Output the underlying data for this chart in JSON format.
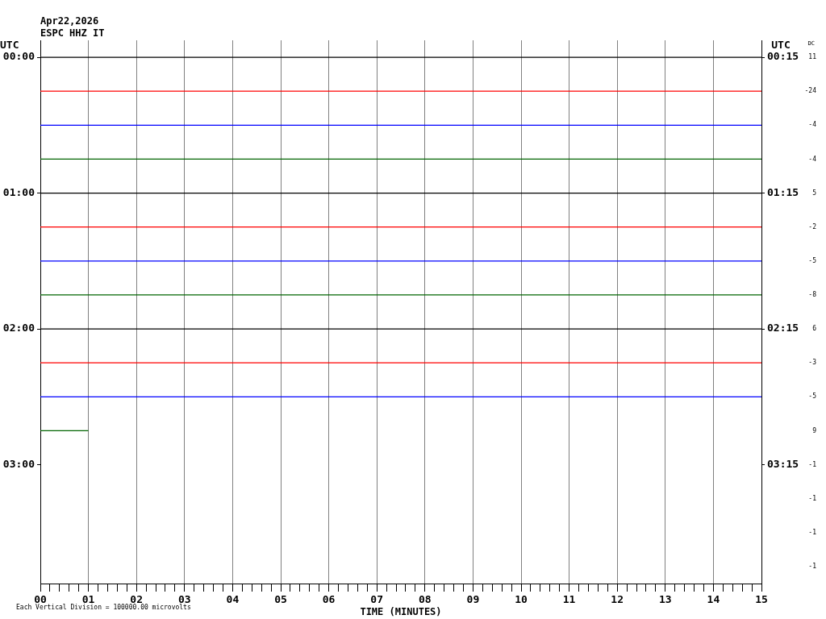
{
  "chart_data": {
    "type": "line",
    "title": "Apr22,2026",
    "subtitle": "ESPC HHZ IT",
    "xlabel": "TIME (MINUTES)",
    "ylabel": "UTC",
    "y2label": "UTC",
    "annotations": [
      "Each Vertical Division = 100000.00 microvolts",
      "DC",
      "11",
      "-24",
      "-4",
      "-4",
      "5",
      "-2",
      "-5",
      "-8",
      "6",
      "-3",
      "-5",
      "9",
      "-1",
      "-1",
      "-1",
      "-1"
    ],
    "xlim": [
      0,
      15
    ],
    "xticks": [
      {
        "value": 0,
        "label": "00"
      },
      {
        "value": 0.2,
        "label": null
      },
      {
        "value": 0.4,
        "label": null
      },
      {
        "value": 0.6,
        "label": null
      },
      {
        "value": 0.8,
        "label": null
      },
      {
        "value": 1,
        "label": "01"
      },
      {
        "value": 1.2,
        "label": null
      },
      {
        "value": 1.4,
        "label": null
      },
      {
        "value": 1.6,
        "label": null
      },
      {
        "value": 1.8,
        "label": null
      },
      {
        "value": 2,
        "label": "02"
      },
      {
        "value": 2.2,
        "label": null
      },
      {
        "value": 2.4,
        "label": null
      },
      {
        "value": 2.6,
        "label": null
      },
      {
        "value": 2.8,
        "label": null
      },
      {
        "value": 3,
        "label": "03"
      },
      {
        "value": 3.2,
        "label": null
      },
      {
        "value": 3.4,
        "label": null
      },
      {
        "value": 3.6,
        "label": null
      },
      {
        "value": 3.8,
        "label": null
      },
      {
        "value": 4,
        "label": "04"
      },
      {
        "value": 4.2,
        "label": null
      },
      {
        "value": 4.4,
        "label": null
      },
      {
        "value": 4.6,
        "label": null
      },
      {
        "value": 4.8,
        "label": null
      },
      {
        "value": 5,
        "label": "05"
      },
      {
        "value": 5.2,
        "label": null
      },
      {
        "value": 5.4,
        "label": null
      },
      {
        "value": 5.6,
        "label": null
      },
      {
        "value": 5.8,
        "label": null
      },
      {
        "value": 6,
        "label": "06"
      },
      {
        "value": 6.2,
        "label": null
      },
      {
        "value": 6.4,
        "label": null
      },
      {
        "value": 6.6,
        "label": null
      },
      {
        "value": 6.8,
        "label": null
      },
      {
        "value": 7,
        "label": "07"
      },
      {
        "value": 7.2,
        "label": null
      },
      {
        "value": 7.4,
        "label": null
      },
      {
        "value": 7.6,
        "label": null
      },
      {
        "value": 7.8,
        "label": null
      },
      {
        "value": 8,
        "label": "08"
      },
      {
        "value": 8.2,
        "label": null
      },
      {
        "value": 8.4,
        "label": null
      },
      {
        "value": 8.6,
        "label": null
      },
      {
        "value": 8.8,
        "label": null
      },
      {
        "value": 9,
        "label": "09"
      },
      {
        "value": 9.2,
        "label": null
      },
      {
        "value": 9.4,
        "label": null
      },
      {
        "value": 9.6,
        "label": null
      },
      {
        "value": 9.8,
        "label": null
      },
      {
        "value": 10,
        "label": "10"
      },
      {
        "value": 10.2,
        "label": null
      },
      {
        "value": 10.4,
        "label": null
      },
      {
        "value": 10.6,
        "label": null
      },
      {
        "value": 10.8,
        "label": null
      },
      {
        "value": 11,
        "label": "11"
      },
      {
        "value": 11.2,
        "label": null
      },
      {
        "value": 11.4,
        "label": null
      },
      {
        "value": 11.6,
        "label": null
      },
      {
        "value": 11.8,
        "label": null
      },
      {
        "value": 12,
        "label": "12"
      },
      {
        "value": 12.2,
        "label": null
      },
      {
        "value": 12.4,
        "label": null
      },
      {
        "value": 12.6,
        "label": null
      },
      {
        "value": 12.8,
        "label": null
      },
      {
        "value": 13,
        "label": "13"
      },
      {
        "value": 13.2,
        "label": null
      },
      {
        "value": 13.4,
        "label": null
      },
      {
        "value": 13.6,
        "label": null
      },
      {
        "value": 13.8,
        "label": null
      },
      {
        "value": 14,
        "label": "14"
      },
      {
        "value": 14.2,
        "label": null
      },
      {
        "value": 14.4,
        "label": null
      },
      {
        "value": 14.6,
        "label": null
      },
      {
        "value": 14.8,
        "label": null
      },
      {
        "value": 15,
        "label": "15"
      }
    ],
    "ylim": [
      3.875,
      -0.125
    ],
    "yticks": [
      {
        "value": 0,
        "label": "00:00"
      },
      {
        "value": 1,
        "label": "01:00"
      },
      {
        "value": 2,
        "label": "02:00"
      },
      {
        "value": 3,
        "label": "03:00"
      }
    ],
    "y2lim": [
      4.125,
      0.125
    ],
    "y2ticks": [
      {
        "value": 0.25,
        "label": "00:15"
      },
      {
        "value": 1.25,
        "label": "01:15"
      },
      {
        "value": 2.25,
        "label": "02:15"
      },
      {
        "value": 3.25,
        "label": "03:15"
      }
    ],
    "grid": "x",
    "legend": false,
    "marker": "none",
    "line_style": "solid",
    "series": [
      {
        "color": "#000000",
        "x": [
          0,
          15
        ],
        "values": [
          0,
          0
        ]
      },
      {
        "color": "#ff0000",
        "x": [
          0,
          15
        ],
        "values": [
          0.25,
          0.25
        ]
      },
      {
        "color": "#0000ff",
        "x": [
          0,
          15
        ],
        "values": [
          0.5,
          0.5
        ]
      },
      {
        "color": "#006400",
        "x": [
          0,
          15
        ],
        "values": [
          0.75,
          0.75
        ]
      },
      {
        "color": "#000000",
        "x": [
          0,
          15
        ],
        "values": [
          1,
          1
        ]
      },
      {
        "color": "#ff0000",
        "x": [
          0,
          15
        ],
        "values": [
          1.25,
          1.25
        ]
      },
      {
        "color": "#0000ff",
        "x": [
          0,
          15
        ],
        "values": [
          1.5,
          1.5
        ]
      },
      {
        "color": "#006400",
        "x": [
          0,
          15
        ],
        "values": [
          1.75,
          1.75
        ]
      },
      {
        "color": "#000000",
        "x": [
          0,
          15
        ],
        "values": [
          2,
          2
        ]
      },
      {
        "color": "#ff0000",
        "x": [
          0,
          15
        ],
        "values": [
          2.25,
          2.25
        ]
      },
      {
        "color": "#0000ff",
        "x": [
          0,
          15
        ],
        "values": [
          2.5,
          2.5
        ]
      },
      {
        "color": "#006400",
        "x": [
          0,
          1
        ],
        "values": [
          2.75,
          2.75
        ]
      }
    ]
  }
}
